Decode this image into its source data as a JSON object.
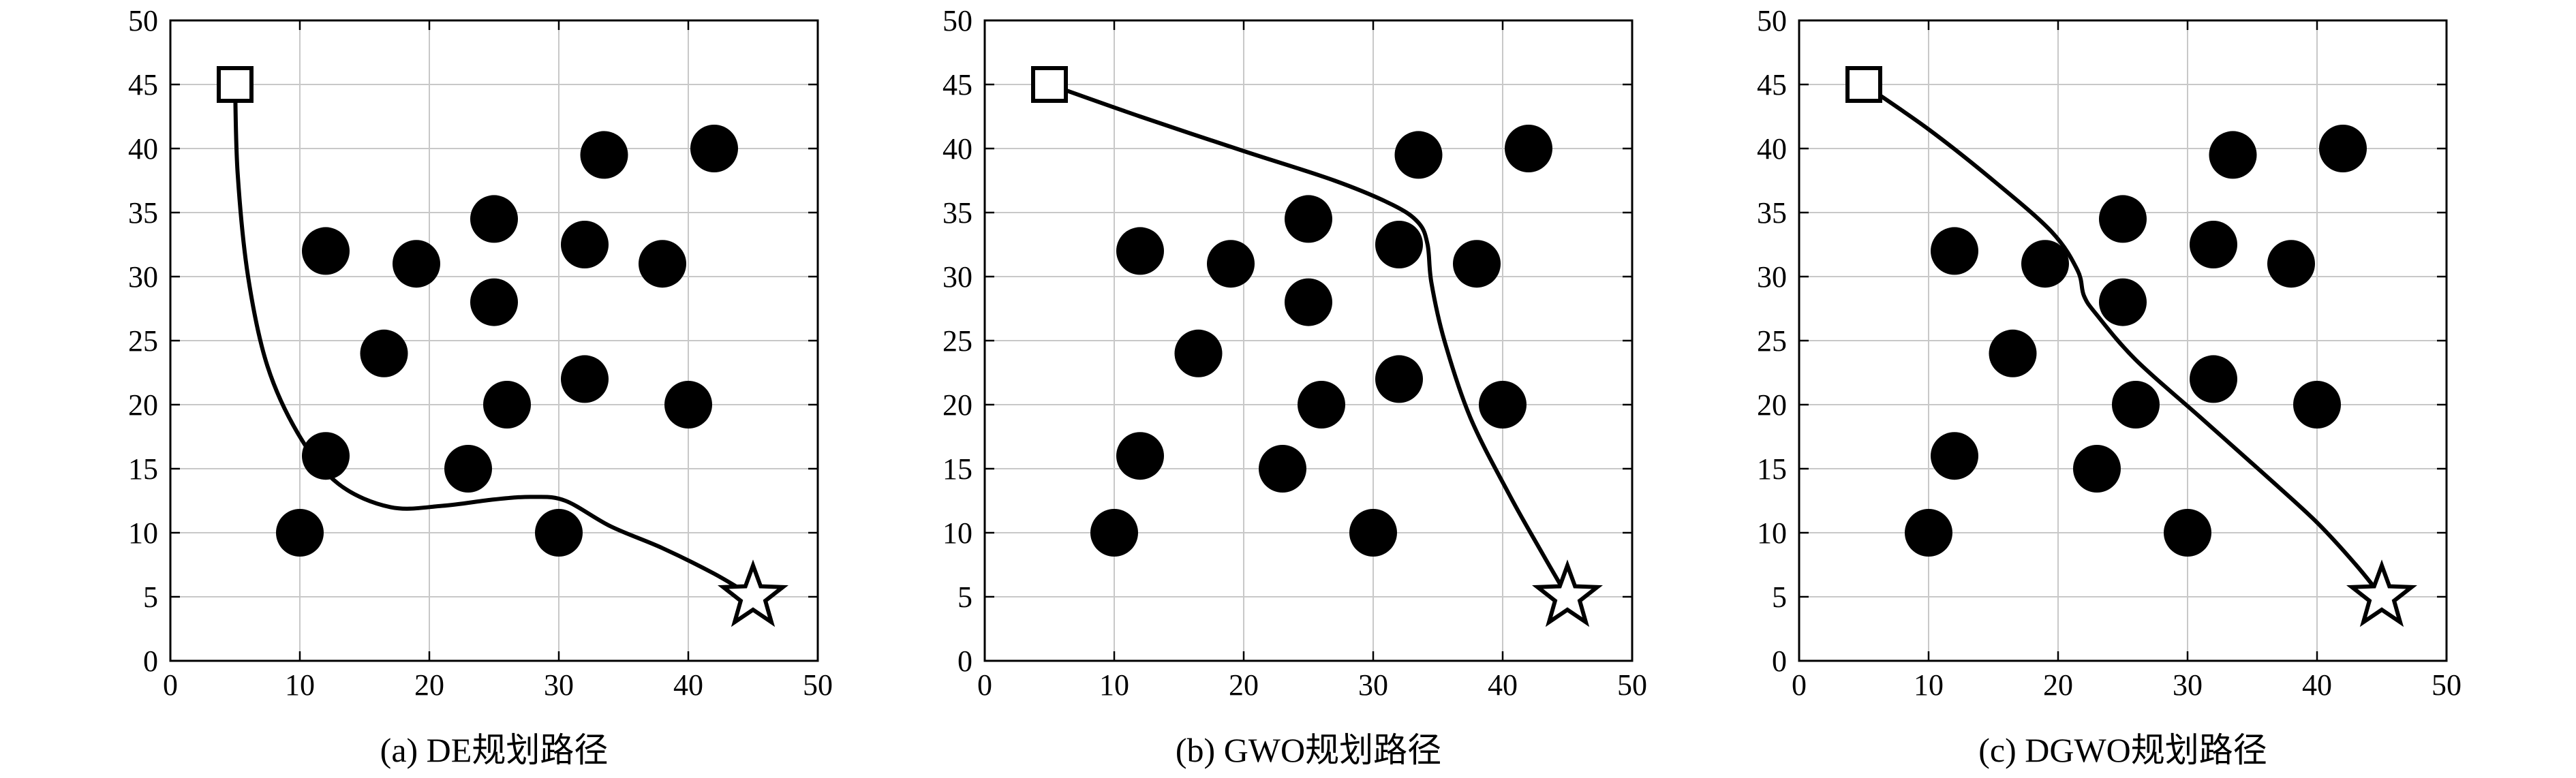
{
  "obstacles": [
    [
      10,
      10
    ],
    [
      12,
      16
    ],
    [
      12,
      32
    ],
    [
      16.5,
      24
    ],
    [
      19,
      31
    ],
    [
      23,
      15
    ],
    [
      25,
      34.5
    ],
    [
      25,
      28
    ],
    [
      26,
      20
    ],
    [
      30,
      10
    ],
    [
      32,
      32.5
    ],
    [
      32,
      22
    ],
    [
      33.5,
      39.5
    ],
    [
      38,
      31
    ],
    [
      40,
      20
    ],
    [
      42,
      40
    ]
  ],
  "colors": {
    "obstacle": "#000000",
    "path": "#000000",
    "grid": "#c8c8c8"
  },
  "chart_data": [
    {
      "type": "scatter",
      "caption": "(a) DE规划路径",
      "xlim": [
        0,
        50
      ],
      "ylim": [
        0,
        50
      ],
      "xticks": [
        "0",
        "10",
        "20",
        "30",
        "40",
        "50"
      ],
      "yticks": [
        "0",
        "5",
        "10",
        "15",
        "20",
        "25",
        "30",
        "35",
        "40",
        "45",
        "50"
      ],
      "grid": true,
      "start": [
        5,
        45
      ],
      "goal": [
        45,
        5
      ],
      "path": [
        [
          5,
          45
        ],
        [
          5.2,
          38
        ],
        [
          6,
          30
        ],
        [
          7.5,
          23
        ],
        [
          10,
          17.5
        ],
        [
          13,
          13.8
        ],
        [
          17,
          12
        ],
        [
          21,
          12.1
        ],
        [
          25,
          12.6
        ],
        [
          28,
          12.8
        ],
        [
          30.5,
          12.5
        ],
        [
          34,
          10.5
        ],
        [
          38,
          8.8
        ],
        [
          42,
          6.8
        ],
        [
          45,
          5
        ]
      ]
    },
    {
      "type": "scatter",
      "caption": "(b) GWO规划路径",
      "xlim": [
        0,
        50
      ],
      "ylim": [
        0,
        50
      ],
      "xticks": [
        "0",
        "10",
        "20",
        "30",
        "40",
        "50"
      ],
      "yticks": [
        "0",
        "5",
        "10",
        "15",
        "20",
        "25",
        "30",
        "35",
        "40",
        "45",
        "50"
      ],
      "grid": true,
      "start": [
        5,
        45
      ],
      "goal": [
        45,
        5
      ],
      "path": [
        [
          5,
          45
        ],
        [
          12,
          42.5
        ],
        [
          20,
          39.8
        ],
        [
          27,
          37.5
        ],
        [
          31.5,
          35.6
        ],
        [
          33.5,
          34.2
        ],
        [
          34.2,
          32.5
        ],
        [
          34.5,
          29.5
        ],
        [
          35.5,
          25
        ],
        [
          37.5,
          19
        ],
        [
          40.5,
          13
        ],
        [
          43,
          8.5
        ],
        [
          45,
          5
        ]
      ]
    },
    {
      "type": "scatter",
      "caption": "(c) DGWO规划路径",
      "xlim": [
        0,
        50
      ],
      "ylim": [
        0,
        50
      ],
      "xticks": [
        "0",
        "10",
        "20",
        "30",
        "40",
        "50"
      ],
      "yticks": [
        "0",
        "5",
        "10",
        "15",
        "20",
        "25",
        "30",
        "35",
        "40",
        "45",
        "50"
      ],
      "grid": true,
      "start": [
        5,
        45
      ],
      "goal": [
        45,
        5
      ],
      "path": [
        [
          5,
          45
        ],
        [
          10,
          41.5
        ],
        [
          15,
          37.5
        ],
        [
          19.5,
          33.5
        ],
        [
          21.5,
          30.5
        ],
        [
          22,
          28.5
        ],
        [
          23,
          27
        ],
        [
          26,
          23.5
        ],
        [
          31,
          19
        ],
        [
          36,
          14.5
        ],
        [
          40,
          10.8
        ],
        [
          43,
          7.5
        ],
        [
          45,
          5
        ]
      ]
    }
  ]
}
